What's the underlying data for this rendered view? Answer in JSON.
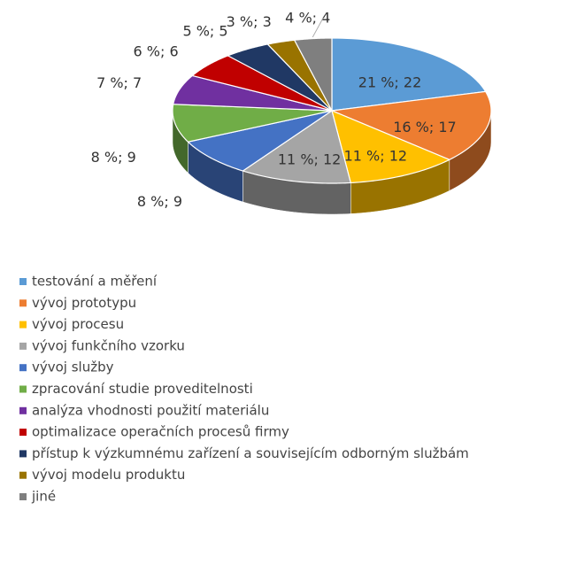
{
  "chart_data": {
    "type": "pie3d",
    "categories": [
      "testování a měření",
      "vývoj prototypu",
      "vývoj procesu",
      "vývoj funkčního vzorku",
      "vývoj služby",
      "zpracování studie proveditelnosti",
      "analýza vhodnosti použití materiálu",
      "optimalizace operačních procesů firmy",
      "přístup k výzkumnému zařízení a souvisejícím odborným službám",
      "vývoj modelu produktu",
      "jiné"
    ],
    "values": [
      22,
      17,
      12,
      12,
      9,
      9,
      7,
      6,
      5,
      3,
      4
    ],
    "value_labels": [
      "21 %; 22",
      "16 %; 17",
      "11 %; 12",
      "11 %; 12",
      "8 %; 9",
      "8 %; 9",
      "7 %; 7",
      "6 %; 6",
      "5 %; 5",
      "3 %; 3",
      "4 %; 4"
    ],
    "colors": [
      "#5b9bd5",
      "#ed7d31",
      "#ffc000",
      "#a5a5a5",
      "#4472c4",
      "#70ad47",
      "#7030a0",
      "#c00000",
      "#203864",
      "#997300",
      "#7f7f7f"
    ],
    "legend": "bottom-left"
  }
}
